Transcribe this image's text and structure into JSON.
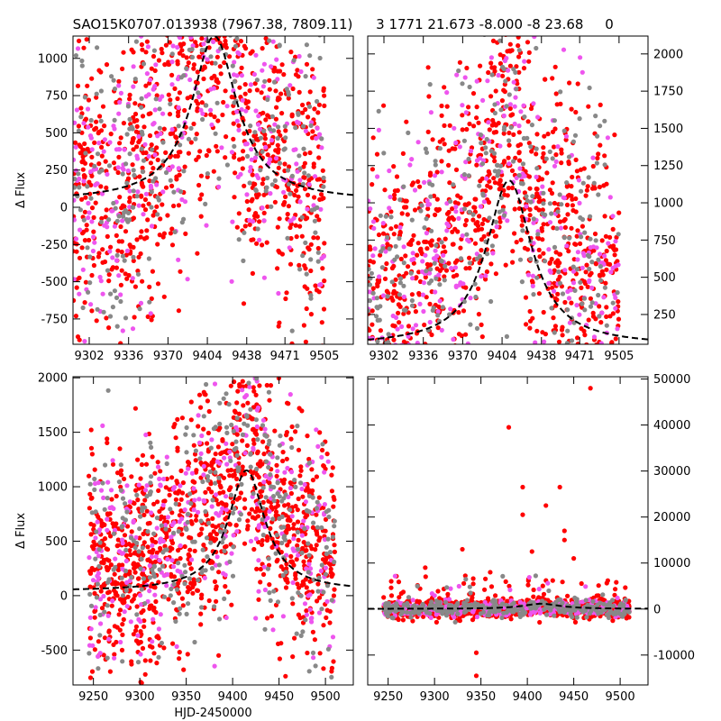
{
  "header": {
    "left_title": "SAO15K0707.013938 (7967.38, 7809.11)",
    "right_title": "3 1771 21.673 -8.000 -8 23.68     0"
  },
  "colors": {
    "series_r": "#ff0000",
    "series_g": "#ee55ee",
    "series_o": "#888888",
    "model": "#000000"
  },
  "chart_data": [
    {
      "panel": "top-left",
      "type": "scatter",
      "ylabel": "Δ Flux",
      "xlim": [
        9288,
        9530
      ],
      "ylim": [
        -920,
        1150
      ],
      "xticks": [
        9302,
        9336,
        9370,
        9404,
        9438,
        9471,
        9505
      ],
      "yticks": [
        -750,
        -500,
        -250,
        0,
        250,
        500,
        750,
        1000
      ],
      "yaxis_side": "left",
      "series": [
        {
          "color": "red",
          "n": 900,
          "seed": 11,
          "x": [
            9288,
            9505
          ]
        },
        {
          "color": "magenta",
          "n": 300,
          "seed": 12,
          "x": [
            9288,
            9505
          ]
        },
        {
          "color": "gray",
          "n": 280,
          "seed": 13,
          "x": [
            9288,
            9505
          ]
        }
      ],
      "model": {
        "peak_x": 9410,
        "peak_y": 1150,
        "base_y": 40,
        "width": 24
      }
    },
    {
      "panel": "top-right",
      "type": "scatter",
      "xlim": [
        9288,
        9530
      ],
      "ylim": [
        50,
        2120
      ],
      "xticks": [
        9302,
        9336,
        9370,
        9404,
        9438,
        9471,
        9505
      ],
      "yticks": [
        250,
        500,
        750,
        1000,
        1250,
        1500,
        1750,
        2000
      ],
      "yaxis_side": "right",
      "series": [
        {
          "color": "red",
          "n": 900,
          "seed": 21,
          "x": [
            9288,
            9505
          ]
        },
        {
          "color": "magenta",
          "n": 300,
          "seed": 22,
          "x": [
            9288,
            9505
          ]
        },
        {
          "color": "gray",
          "n": 280,
          "seed": 23,
          "x": [
            9288,
            9505
          ]
        }
      ],
      "model": {
        "peak_x": 9410,
        "peak_y": 1150,
        "base_y": 40,
        "width": 24
      }
    },
    {
      "panel": "bottom-left",
      "type": "scatter",
      "xlabel": "HJD-2450000",
      "ylabel": "Δ Flux",
      "xlim": [
        9228,
        9530
      ],
      "ylim": [
        -820,
        2010
      ],
      "xticks": [
        9250,
        9300,
        9350,
        9400,
        9450,
        9500
      ],
      "yticks": [
        -500,
        0,
        500,
        1000,
        1500,
        2000
      ],
      "yaxis_side": "left",
      "series": [
        {
          "color": "red",
          "n": 1100,
          "seed": 31,
          "x": [
            9245,
            9510
          ]
        },
        {
          "color": "magenta",
          "n": 300,
          "seed": 32,
          "x": [
            9245,
            9510
          ]
        },
        {
          "color": "gray",
          "n": 320,
          "seed": 33,
          "x": [
            9245,
            9510
          ]
        }
      ],
      "model": {
        "peak_x": 9415,
        "peak_y": 1150,
        "base_y": 40,
        "width": 24
      }
    },
    {
      "panel": "bottom-right",
      "type": "scatter",
      "xlim": [
        9228,
        9530
      ],
      "ylim": [
        -16500,
        50500
      ],
      "xticks": [
        9250,
        9300,
        9350,
        9400,
        9450,
        9500
      ],
      "yticks": [
        -10000,
        0,
        10000,
        20000,
        30000,
        40000,
        50000
      ],
      "yaxis_side": "right",
      "series": [
        {
          "color": "red",
          "n": 1100,
          "seed": 41,
          "x": [
            9245,
            9510
          ]
        },
        {
          "color": "magenta",
          "n": 300,
          "seed": 42,
          "x": [
            9245,
            9510
          ]
        },
        {
          "color": "gray",
          "n": 320,
          "seed": 43,
          "x": [
            9245,
            9510
          ]
        }
      ],
      "outliers": [
        [
          9380,
          39500
        ],
        [
          9395,
          26500
        ],
        [
          9395,
          20500
        ],
        [
          9420,
          22500
        ],
        [
          9435,
          26500
        ],
        [
          9440,
          17000
        ],
        [
          9468,
          48000
        ],
        [
          9330,
          13000
        ],
        [
          9345,
          -9500
        ],
        [
          9345,
          -14500
        ],
        [
          9405,
          12500
        ],
        [
          9440,
          15000
        ],
        [
          9450,
          11000
        ],
        [
          9360,
          8000
        ],
        [
          9290,
          9000
        ]
      ],
      "model": {
        "peak_x": 9415,
        "peak_y": 1150,
        "base_y": 40,
        "width": 24
      }
    }
  ]
}
